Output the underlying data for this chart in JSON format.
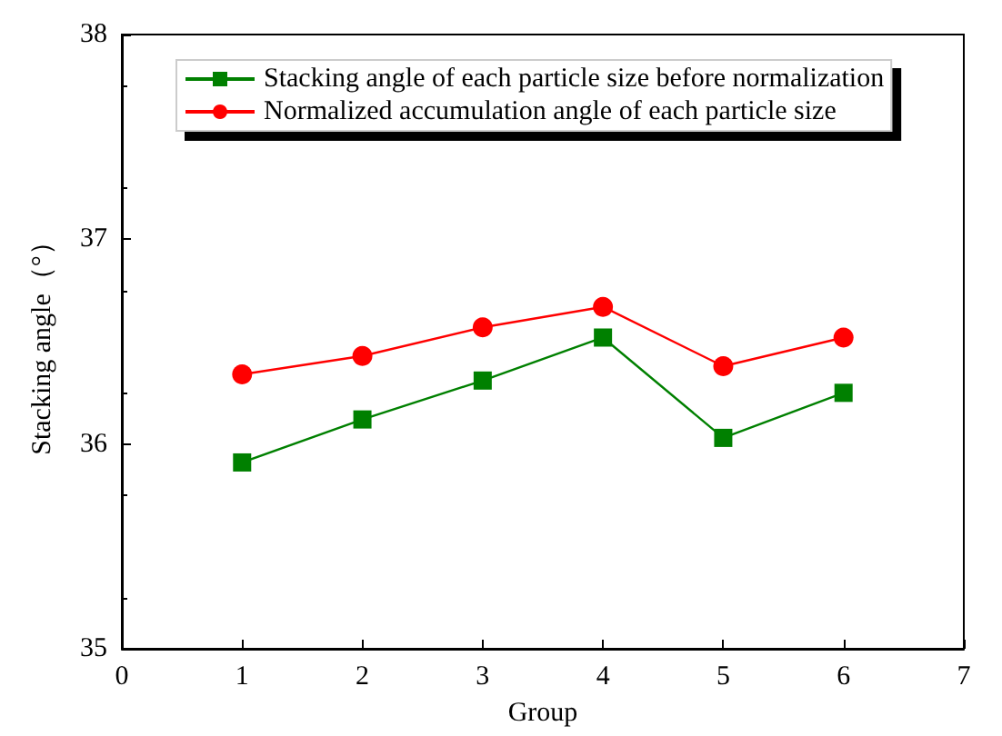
{
  "chart_data": {
    "type": "line",
    "xlabel": "Group",
    "ylabel": "Stacking angle（°）",
    "x": [
      1,
      2,
      3,
      4,
      5,
      6
    ],
    "series": [
      {
        "name": "Stacking angle of each particle size before normalization",
        "color": "#008000",
        "marker": "square",
        "values": [
          35.91,
          36.12,
          36.31,
          36.52,
          36.03,
          36.25
        ]
      },
      {
        "name": "Normalized accumulation angle of each particle size",
        "color": "#ff0000",
        "marker": "circle",
        "values": [
          36.34,
          36.43,
          36.57,
          36.67,
          36.38,
          36.52
        ]
      }
    ],
    "xlim": [
      0,
      7
    ],
    "xticks": [
      0,
      1,
      2,
      3,
      4,
      5,
      6,
      7
    ],
    "ylim": [
      35,
      38
    ],
    "yticks": [
      35,
      36,
      37,
      38
    ],
    "grid": false,
    "legend": "top",
    "line_style": "solid"
  }
}
